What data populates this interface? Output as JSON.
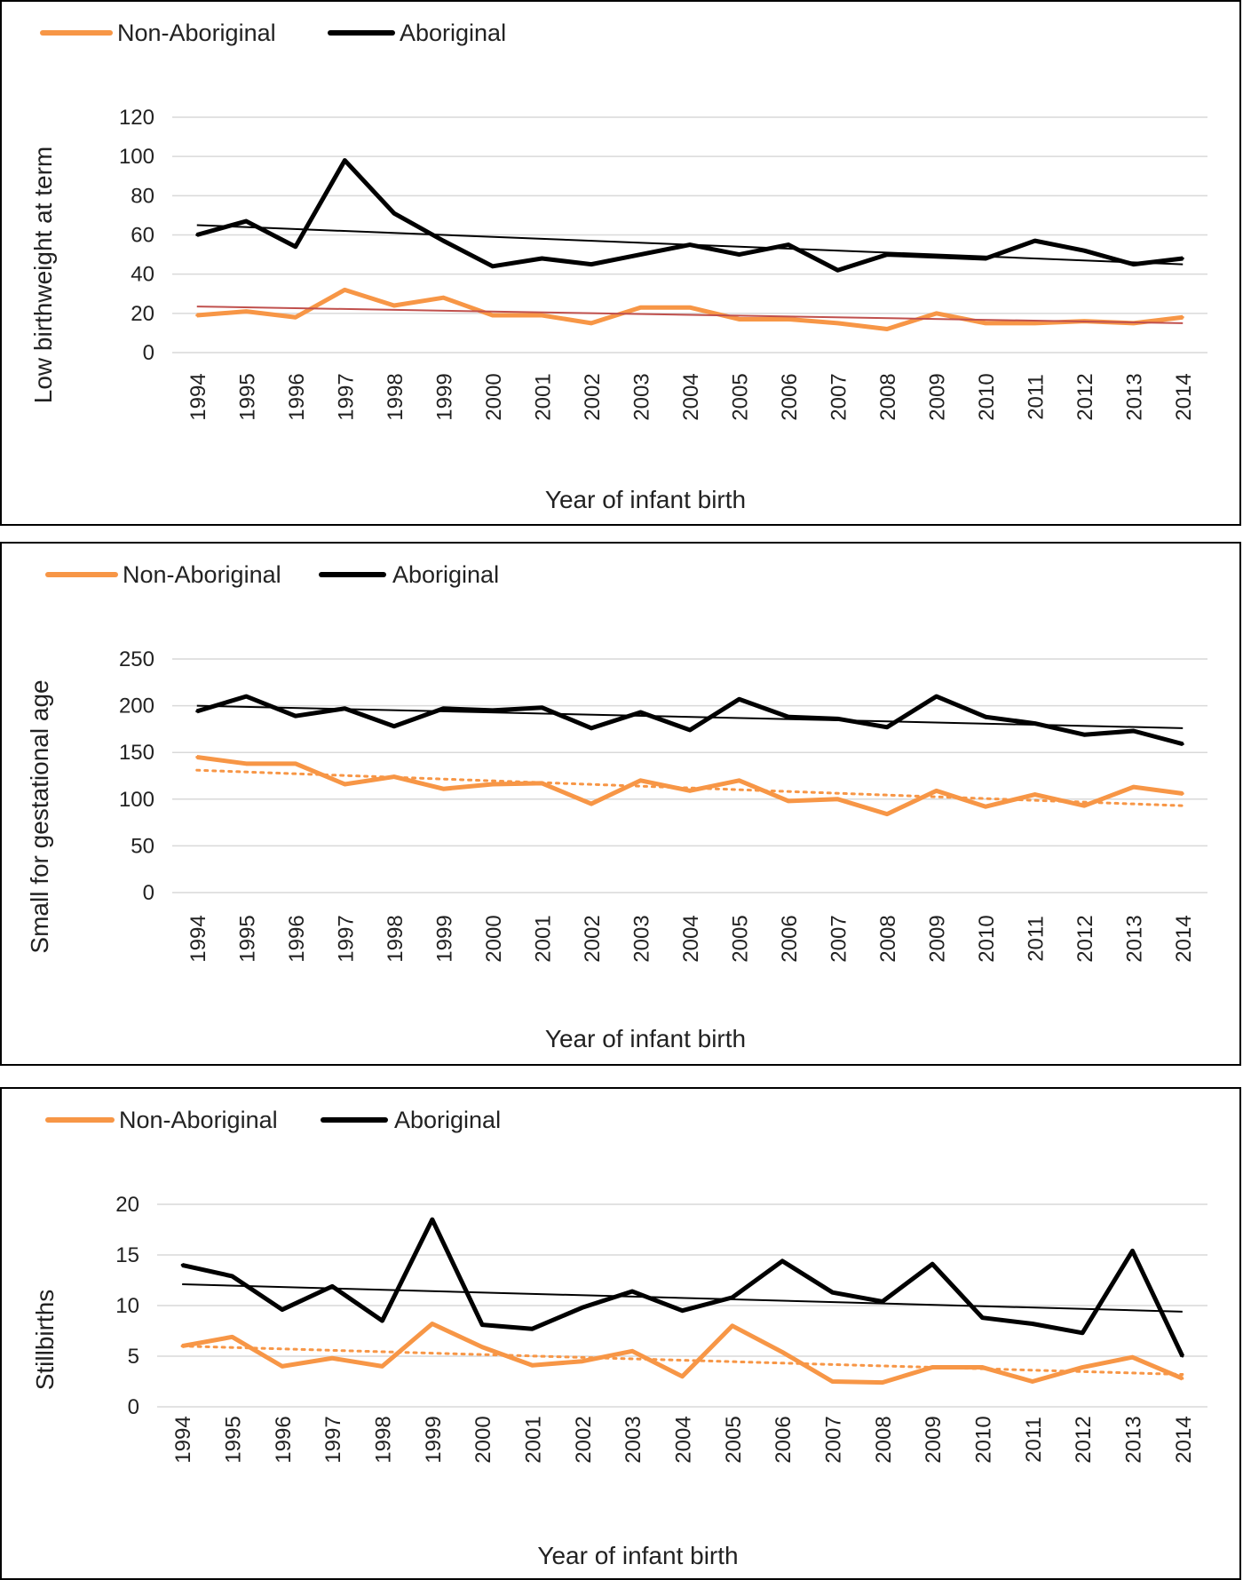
{
  "colors": {
    "non_aboriginal": "#f79646",
    "aboriginal": "#000000",
    "trend_red": "#c0504d",
    "gridline": "#d9d9d9"
  },
  "chart_data": [
    {
      "type": "line",
      "xlabel": "Year of infant birth",
      "ylabel": "Low birthweight at term",
      "ylim": [
        0,
        120
      ],
      "yticks": [
        0,
        20,
        40,
        60,
        80,
        100,
        120
      ],
      "grid": true,
      "legend": "top-left",
      "categories": [
        "1994",
        "1995",
        "1996",
        "1997",
        "1998",
        "1999",
        "2000",
        "2001",
        "2002",
        "2003",
        "2004",
        "2005",
        "2006",
        "2007",
        "2008",
        "2009",
        "2010",
        "2011",
        "2012",
        "2013",
        "2014"
      ],
      "series": [
        {
          "name": "Non-Aboriginal",
          "color": "#f79646",
          "values": [
            19,
            21,
            18,
            32,
            24,
            28,
            19,
            19,
            15,
            23,
            23,
            17,
            17,
            15,
            12,
            20,
            15,
            15,
            16,
            15,
            18
          ],
          "trend": [
            23.5,
            15
          ],
          "trend_color": "#c0504d",
          "trend_style": "solid"
        },
        {
          "name": "Aboriginal",
          "color": "#000000",
          "values": [
            60,
            67,
            54,
            98,
            71,
            57,
            44,
            48,
            45,
            50,
            55,
            50,
            55,
            42,
            50,
            49,
            48,
            57,
            52,
            45,
            48
          ],
          "trend": [
            65,
            45
          ],
          "trend_color": "#000000",
          "trend_style": "solid"
        }
      ]
    },
    {
      "type": "line",
      "xlabel": "Year of infant birth",
      "ylabel": "Small for gestational age",
      "ylim": [
        0,
        250
      ],
      "yticks": [
        0,
        50,
        100,
        150,
        200,
        250
      ],
      "grid": true,
      "legend": "top-left",
      "categories": [
        "1994",
        "1995",
        "1996",
        "1997",
        "1998",
        "1999",
        "2000",
        "2001",
        "2002",
        "2003",
        "2004",
        "2005",
        "2006",
        "2007",
        "2008",
        "2009",
        "2010",
        "2011",
        "2012",
        "2013",
        "2014"
      ],
      "series": [
        {
          "name": "Non-Aboriginal",
          "color": "#f79646",
          "values": [
            145,
            138,
            138,
            116,
            124,
            111,
            116,
            117,
            95,
            120,
            109,
            120,
            98,
            100,
            84,
            109,
            92,
            105,
            93,
            113,
            106
          ],
          "trend": [
            131,
            93
          ],
          "trend_color": "#f79646",
          "trend_style": "dotted"
        },
        {
          "name": "Aboriginal",
          "color": "#000000",
          "values": [
            194,
            210,
            189,
            197,
            178,
            197,
            195,
            198,
            176,
            193,
            174,
            207,
            188,
            186,
            177,
            210,
            188,
            181,
            169,
            173,
            159
          ],
          "trend": [
            200,
            176
          ],
          "trend_color": "#000000",
          "trend_style": "solid"
        }
      ]
    },
    {
      "type": "line",
      "xlabel": "Year of infant birth",
      "ylabel": "Stillbirths",
      "ylim": [
        0,
        20
      ],
      "yticks": [
        0,
        5,
        10,
        15,
        20
      ],
      "grid": true,
      "legend": "top-left",
      "categories": [
        "1994",
        "1995",
        "1996",
        "1997",
        "1998",
        "1999",
        "2000",
        "2001",
        "2002",
        "2003",
        "2004",
        "2005",
        "2006",
        "2007",
        "2008",
        "2009",
        "2010",
        "2011",
        "2012",
        "2013",
        "2014"
      ],
      "series": [
        {
          "name": "Non-Aboriginal",
          "color": "#f79646",
          "values": [
            6,
            6.9,
            4,
            4.8,
            4,
            8.2,
            5.9,
            4.1,
            4.5,
            5.5,
            3,
            8,
            5.4,
            2.5,
            2.4,
            3.9,
            3.9,
            2.5,
            3.9,
            4.9,
            2.8
          ],
          "trend": [
            6,
            3.2
          ],
          "trend_color": "#f79646",
          "trend_style": "dotted"
        },
        {
          "name": "Aboriginal",
          "color": "#000000",
          "values": [
            14,
            12.9,
            9.6,
            11.9,
            8.5,
            18.5,
            8.1,
            7.7,
            9.8,
            11.4,
            9.5,
            10.8,
            14.4,
            11.3,
            10.4,
            14.1,
            8.8,
            8.2,
            7.3,
            15.4,
            5
          ],
          "trend": [
            12.1,
            9.4
          ],
          "trend_color": "#000000",
          "trend_style": "solid"
        }
      ]
    }
  ]
}
